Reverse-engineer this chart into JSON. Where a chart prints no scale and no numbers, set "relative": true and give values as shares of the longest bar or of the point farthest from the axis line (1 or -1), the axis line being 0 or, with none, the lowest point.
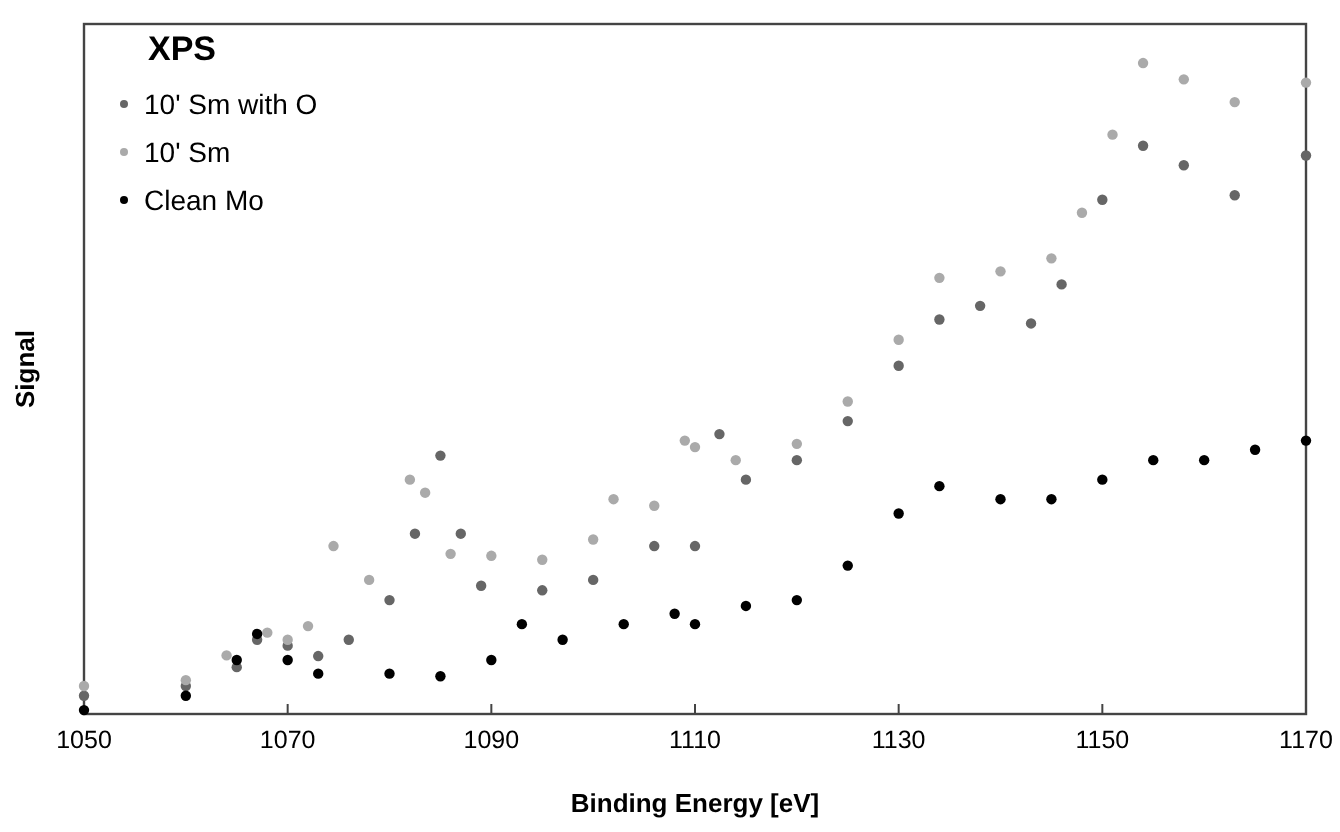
{
  "chart_data": {
    "type": "scatter",
    "xlabel": "Binding Energy [eV]",
    "ylabel": "Signal",
    "legend_title": "XPS",
    "legend": "top left",
    "marker": "circle",
    "relative": true,
    "tick_labels": "x",
    "xlim": [
      1050,
      1170
    ],
    "xticks": [
      1050,
      1070,
      1090,
      1110,
      1130,
      1150,
      1170
    ],
    "series": [
      {
        "name": "10' Sm with O",
        "color": "#666666",
        "x": [
          1050,
          1060,
          1065,
          1067,
          1070,
          1073,
          1076,
          1080,
          1082.5,
          1085,
          1087,
          1089,
          1095,
          1100,
          1106,
          1110,
          1112.4,
          1115,
          1120,
          1125,
          1130,
          1134,
          1138,
          1143,
          1146,
          1150,
          1154,
          1158,
          1163,
          1170
        ],
        "values": [
          0.028,
          0.043,
          0.072,
          0.114,
          0.105,
          0.089,
          0.114,
          0.175,
          0.277,
          0.397,
          0.277,
          0.197,
          0.19,
          0.206,
          0.258,
          0.258,
          0.43,
          0.36,
          0.39,
          0.45,
          0.535,
          0.606,
          0.627,
          0.6,
          0.66,
          0.79,
          0.873,
          0.843,
          0.797,
          0.858
        ]
      },
      {
        "name": "10' Sm",
        "color": "#aaaaaa",
        "x": [
          1050,
          1060,
          1064,
          1068,
          1070,
          1072,
          1074.5,
          1078,
          1082,
          1083.5,
          1086,
          1090,
          1095,
          1100,
          1102,
          1106,
          1109,
          1110,
          1114,
          1120,
          1125,
          1130,
          1134,
          1140,
          1145,
          1148,
          1151,
          1154,
          1158,
          1163,
          1170
        ],
        "values": [
          0.043,
          0.052,
          0.09,
          0.125,
          0.114,
          0.135,
          0.258,
          0.206,
          0.36,
          0.34,
          0.246,
          0.243,
          0.237,
          0.268,
          0.33,
          0.32,
          0.42,
          0.41,
          0.39,
          0.415,
          0.48,
          0.575,
          0.67,
          0.68,
          0.7,
          0.77,
          0.89,
          1.0,
          0.975,
          0.94,
          0.97
        ]
      },
      {
        "name": "Clean Mo",
        "color": "#000000",
        "x": [
          1050,
          1060,
          1065,
          1067,
          1070,
          1073,
          1080,
          1085,
          1090,
          1093,
          1097,
          1103,
          1108,
          1110,
          1115,
          1120,
          1125,
          1130,
          1134,
          1140,
          1145,
          1150,
          1155,
          1160,
          1165,
          1170
        ],
        "values": [
          0.006,
          0.028,
          0.083,
          0.123,
          0.083,
          0.062,
          0.062,
          0.058,
          0.083,
          0.138,
          0.114,
          0.138,
          0.154,
          0.138,
          0.166,
          0.175,
          0.228,
          0.308,
          0.35,
          0.33,
          0.33,
          0.36,
          0.39,
          0.39,
          0.406,
          0.42
        ]
      }
    ]
  }
}
